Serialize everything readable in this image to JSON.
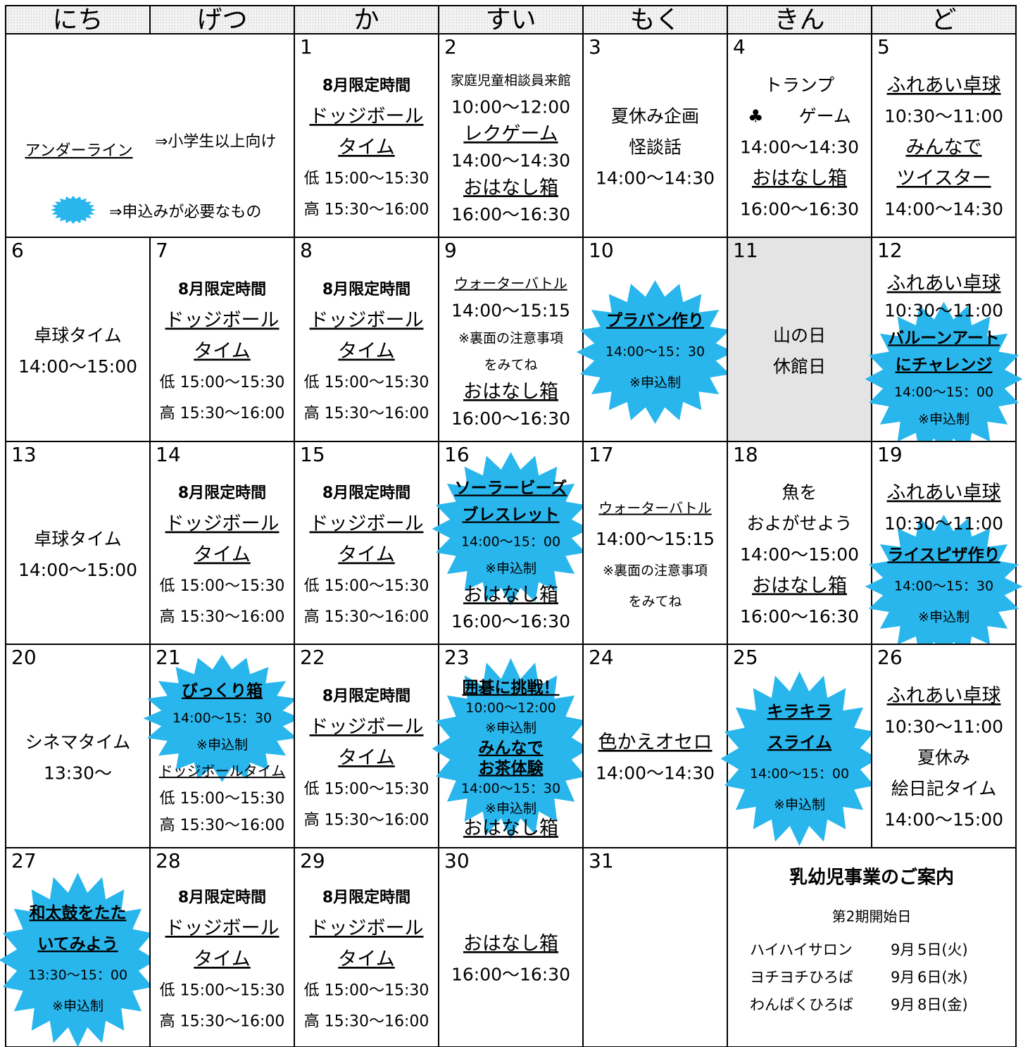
{
  "header": {
    "days": [
      "にち",
      "げつ",
      "か",
      "すい",
      "もく",
      "きん",
      "ど"
    ]
  },
  "legend": {
    "underline_label": "アンダーライン",
    "underline_meaning": "⇒小学生以上向け",
    "burst_meaning": "⇒申込みが必要なもの"
  },
  "weeks": [
    {
      "cells": [
        {
          "date": "1",
          "lines": [
            {
              "text": "8月限定時間",
              "style": "bold"
            },
            {
              "text": "ドッジボール",
              "style": "underline"
            },
            {
              "text": "タイム",
              "style": "underline"
            },
            {
              "text": "低 15:00〜15:30",
              "style": "small"
            },
            {
              "text": "高 15:30〜16:00",
              "style": "small"
            }
          ]
        },
        {
          "date": "2",
          "lines": [
            {
              "text": "家庭児童相談員来館",
              "style": "tiny"
            },
            "10:00〜12:00",
            {
              "text": "レクゲーム",
              "style": "underline"
            },
            "14:00〜14:30",
            {
              "text": "おはなし箱",
              "style": "underline"
            },
            "16:00〜16:30"
          ]
        },
        {
          "date": "3",
          "lines": [
            "夏休み企画",
            "怪談話",
            "14:00〜14:30"
          ]
        },
        {
          "date": "4",
          "lines": [
            "トランプ",
            "♣　　ゲーム",
            "14:00〜14:30",
            {
              "text": "おはなし箱",
              "style": "underline"
            },
            "16:00〜16:30"
          ]
        },
        {
          "date": "5",
          "lines": [
            {
              "text": "ふれあい卓球",
              "style": "underline"
            },
            "10:30〜11:00",
            {
              "text": "みんなで",
              "style": "underline"
            },
            {
              "text": "ツイスター",
              "style": "underline"
            },
            "14:00〜14:30"
          ]
        }
      ]
    },
    {
      "cells": [
        {
          "date": "6",
          "lines": [
            "卓球タイム",
            "14:00〜15:00"
          ]
        },
        {
          "date": "7",
          "lines": [
            {
              "text": "8月限定時間",
              "style": "bold"
            },
            {
              "text": "ドッジボール",
              "style": "underline"
            },
            {
              "text": "タイム",
              "style": "underline"
            },
            {
              "text": "低 15:00〜15:30",
              "style": "small"
            },
            {
              "text": "高 15:30〜16:00",
              "style": "small"
            }
          ]
        },
        {
          "date": "8",
          "lines": [
            {
              "text": "8月限定時間",
              "style": "bold"
            },
            {
              "text": "ドッジボール",
              "style": "underline"
            },
            {
              "text": "タイム",
              "style": "underline"
            },
            {
              "text": "低 15:00〜15:30",
              "style": "small"
            },
            {
              "text": "高 15:30〜16:00",
              "style": "small"
            }
          ]
        },
        {
          "date": "9",
          "lines": [
            {
              "text": "ウォーターバトル",
              "style": "tiny-underline"
            },
            "14:00〜15:15",
            {
              "text": "※裏面の注意事項",
              "style": "tiny"
            },
            {
              "text": "をみてね",
              "style": "tiny"
            },
            {
              "text": "おはなし箱",
              "style": "underline"
            },
            "16:00〜16:30"
          ]
        },
        {
          "date": "10",
          "lines": [
            {
              "text": "プラバン作り",
              "style": "burst-title"
            },
            {
              "text": "14:00〜15：30",
              "style": "burst"
            },
            {
              "text": "※申込制",
              "style": "burst"
            }
          ]
        },
        {
          "date": "11",
          "fill": "#e4e4e4",
          "lines": [
            "山の日",
            "休館日"
          ]
        },
        {
          "date": "12",
          "lines": [
            {
              "text": "ふれあい卓球",
              "style": "underline"
            },
            "10:30〜11:00",
            {
              "text": "バルーンアート",
              "style": "burst-title"
            },
            {
              "text": "にチャレンジ",
              "style": "burst-title"
            },
            {
              "text": "14:00〜15：00",
              "style": "burst"
            },
            {
              "text": "※申込制",
              "style": "burst"
            }
          ]
        }
      ]
    },
    {
      "cells": [
        {
          "date": "13",
          "lines": [
            "卓球タイム",
            "14:00〜15:00"
          ]
        },
        {
          "date": "14",
          "lines": [
            {
              "text": "8月限定時間",
              "style": "bold"
            },
            {
              "text": "ドッジボール",
              "style": "underline"
            },
            {
              "text": "タイム",
              "style": "underline"
            },
            {
              "text": "低 15:00〜15:30",
              "style": "small"
            },
            {
              "text": "高 15:30〜16:00",
              "style": "small"
            }
          ]
        },
        {
          "date": "15",
          "lines": [
            {
              "text": "8月限定時間",
              "style": "bold"
            },
            {
              "text": "ドッジボール",
              "style": "underline"
            },
            {
              "text": "タイム",
              "style": "underline"
            },
            {
              "text": "低 15:00〜15:30",
              "style": "small"
            },
            {
              "text": "高 15:30〜16:00",
              "style": "small"
            }
          ]
        },
        {
          "date": "16",
          "lines": [
            {
              "text": "ソーラービーズ",
              "style": "burst-title"
            },
            {
              "text": "ブレスレット",
              "style": "burst-title"
            },
            {
              "text": "14:00〜15：00",
              "style": "burst"
            },
            {
              "text": "※申込制",
              "style": "burst"
            },
            {
              "text": "おはなし箱",
              "style": "underline"
            },
            "16:00〜16:30"
          ]
        },
        {
          "date": "17",
          "lines": [
            {
              "text": "ウォーターバトル",
              "style": "tiny-underline"
            },
            "14:00〜15:15",
            {
              "text": "※裏面の注意事項",
              "style": "tiny"
            },
            {
              "text": "をみてね",
              "style": "tiny"
            }
          ]
        },
        {
          "date": "18",
          "lines": [
            "魚を",
            "およがせよう",
            "14:00〜15:00",
            {
              "text": "おはなし箱",
              "style": "underline"
            },
            "16:00〜16:30"
          ]
        },
        {
          "date": "19",
          "lines": [
            {
              "text": "ふれあい卓球",
              "style": "underline"
            },
            "10:30〜11:00",
            {
              "text": "ライスピザ作り",
              "style": "burst-title"
            },
            {
              "text": "14:00〜15：30",
              "style": "burst"
            },
            {
              "text": "※申込制",
              "style": "burst"
            }
          ]
        }
      ]
    },
    {
      "cells": [
        {
          "date": "20",
          "lines": [
            "シネマタイム",
            "13:30〜"
          ]
        },
        {
          "date": "21",
          "lines": [
            {
              "text": "びっくり箱",
              "style": "burst-title"
            },
            {
              "text": "14:00〜15：30",
              "style": "burst"
            },
            {
              "text": "※申込制",
              "style": "burst"
            },
            {
              "text": "ドッジボールタイム",
              "style": "tiny-underline"
            },
            {
              "text": "低 15:00〜15:30",
              "style": "small"
            },
            {
              "text": "高 15:30〜16:00",
              "style": "small"
            }
          ]
        },
        {
          "date": "22",
          "lines": [
            {
              "text": "8月限定時間",
              "style": "bold"
            },
            {
              "text": "ドッジボール",
              "style": "underline"
            },
            {
              "text": "タイム",
              "style": "underline"
            },
            {
              "text": "低 15:00〜15:30",
              "style": "small"
            },
            {
              "text": "高 15:30〜16:00",
              "style": "small"
            }
          ]
        },
        {
          "date": "23",
          "lines": [
            {
              "text": "囲碁に挑戦！",
              "style": "burst-title"
            },
            {
              "text": "10:00〜12:00",
              "style": "burst"
            },
            {
              "text": "※申込制",
              "style": "burst"
            },
            {
              "text": "みんなで",
              "style": "burst-title"
            },
            {
              "text": "お茶体験",
              "style": "burst-title"
            },
            {
              "text": "14:00〜15：30",
              "style": "burst"
            },
            {
              "text": "※申込制",
              "style": "burst"
            },
            {
              "text": "おはなし箱",
              "style": "underline"
            }
          ]
        },
        {
          "date": "24",
          "lines": [
            {
              "text": "色かえオセロ",
              "style": "underline"
            },
            "14:00〜14:30"
          ]
        },
        {
          "date": "25",
          "lines": [
            {
              "text": "キラキラ",
              "style": "burst-title"
            },
            {
              "text": "スライム",
              "style": "burst-title"
            },
            {
              "text": "14:00〜15：00",
              "style": "burst"
            },
            {
              "text": "※申込制",
              "style": "burst"
            }
          ]
        },
        {
          "date": "26",
          "lines": [
            {
              "text": "ふれあい卓球",
              "style": "underline"
            },
            "10:30〜11:00",
            "夏休み",
            "絵日記タイム",
            "14:00〜15:00"
          ]
        }
      ]
    },
    {
      "cells": [
        {
          "date": "27",
          "lines": [
            {
              "text": "和太鼓をたた",
              "style": "burst-title"
            },
            {
              "text": "いてみよう",
              "style": "burst-title"
            },
            {
              "text": "13:30〜15：00",
              "style": "burst"
            },
            {
              "text": "※申込制",
              "style": "burst"
            }
          ]
        },
        {
          "date": "28",
          "lines": [
            {
              "text": "8月限定時間",
              "style": "bold"
            },
            {
              "text": "ドッジボール",
              "style": "underline"
            },
            {
              "text": "タイム",
              "style": "underline"
            },
            {
              "text": "低 15:00〜15:30",
              "style": "small"
            },
            {
              "text": "高 15:30〜16:00",
              "style": "small"
            }
          ]
        },
        {
          "date": "29",
          "lines": [
            {
              "text": "8月限定時間",
              "style": "bold"
            },
            {
              "text": "ドッジボール",
              "style": "underline"
            },
            {
              "text": "タイム",
              "style": "underline"
            },
            {
              "text": "低 15:00〜15:30",
              "style": "small"
            },
            {
              "text": "高 15:30〜16:00",
              "style": "small"
            }
          ]
        },
        {
          "date": "30",
          "lines": [
            {
              "text": "おはなし箱",
              "style": "underline"
            },
            "16:00〜16:30"
          ]
        },
        {
          "date": "31",
          "lines": []
        }
      ]
    }
  ],
  "infant_info": {
    "title": "乳幼児事業のご案内",
    "subtitle": "第2期開始日",
    "rows": [
      [
        "ハイハイサロン",
        "9月",
        "5日(火)"
      ],
      [
        "ヨチヨチひろば",
        "9月",
        "6日(水)"
      ],
      [
        "わんぱくひろば",
        "9月",
        "8日(金)"
      ]
    ]
  }
}
